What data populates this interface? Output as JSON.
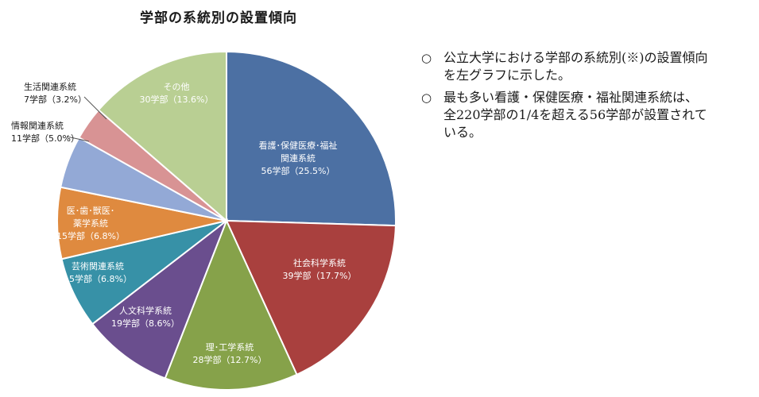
{
  "chart_data": {
    "type": "pie",
    "title": "学部の系統別の設置傾向",
    "total": 220,
    "slices": [
      {
        "category": "看護･保健医療･福祉関連系統",
        "label_lines": [
          "看護･保健医療･福祉",
          "関連系統",
          "56学部（25.5%）"
        ],
        "value": 56,
        "percent": 25.5,
        "color": "#4C70A3"
      },
      {
        "category": "社会科学系統",
        "label_lines": [
          "社会科学系統",
          "39学部（17.7%）"
        ],
        "value": 39,
        "percent": 17.7,
        "color": "#A9403E"
      },
      {
        "category": "理･工学系統",
        "label_lines": [
          "理･工学系統",
          "28学部（12.7%）"
        ],
        "value": 28,
        "percent": 12.7,
        "color": "#86A24A"
      },
      {
        "category": "人文科学系統",
        "label_lines": [
          "人文科学系統",
          "19学部（8.6%）"
        ],
        "value": 19,
        "percent": 8.6,
        "color": "#6A4E8E"
      },
      {
        "category": "芸術関連系統",
        "label_lines": [
          "芸術関連系統",
          "15学部（6.8%）"
        ],
        "value": 15,
        "percent": 6.8,
        "color": "#3791A7"
      },
      {
        "category": "医･歯･獣医･薬学系統",
        "label_lines": [
          "医･歯･獣医･",
          "薬学系統",
          "15学部（6.8%）"
        ],
        "value": 15,
        "percent": 6.8,
        "color": "#DF8A3F"
      },
      {
        "category": "情報関連系統",
        "label_lines": [
          "情報関連系統",
          "11学部（5.0%）"
        ],
        "value": 11,
        "percent": 5.0,
        "color": "#93A9D6"
      },
      {
        "category": "生活関連系統",
        "label_lines": [
          "生活関連系統",
          "7学部（3.2%）"
        ],
        "value": 7,
        "percent": 3.2,
        "color": "#D89394"
      },
      {
        "category": "その他",
        "label_lines": [
          "その他",
          "30学部（13.6%）"
        ],
        "value": 30,
        "percent": 13.6,
        "color": "#B9CF93"
      }
    ]
  },
  "notes": [
    {
      "marker": "○",
      "lines": [
        "公立大学における学部の系統別(※)の設置傾向",
        "を左グラフに示した。"
      ]
    },
    {
      "marker": "○",
      "lines": [
        "最も多い看護・保健医療・福祉関連系統は、",
        "全220学部の1/4を超える56学部が設置されて",
        "いる。"
      ]
    }
  ]
}
